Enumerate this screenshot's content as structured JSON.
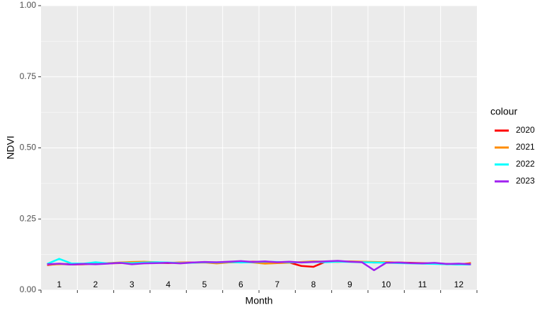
{
  "chart_data": {
    "type": "line",
    "x_label": "Month",
    "y_label": "NDVI",
    "legend_title": "colour",
    "categories": [
      null,
      "1",
      null,
      null,
      "2",
      null,
      null,
      "3",
      null,
      null,
      "4",
      null,
      null,
      "5",
      null,
      null,
      "6",
      null,
      null,
      "7",
      null,
      null,
      "8",
      null,
      null,
      "9",
      null,
      null,
      "10",
      null,
      null,
      "11",
      null,
      null,
      "12",
      null
    ],
    "ylim": [
      0,
      1
    ],
    "yticks": [
      {
        "value": 0,
        "label": "0.00"
      },
      {
        "value": 0.25,
        "label": "0.25"
      },
      {
        "value": 0.5,
        "label": "0.50"
      },
      {
        "value": 0.75,
        "label": "0.75"
      },
      {
        "value": 1,
        "label": "1.00"
      }
    ],
    "grid": true,
    "series": [
      {
        "name": "2020",
        "color": "#ff0000",
        "values": [
          0.088,
          0.092,
          0.09,
          0.091,
          0.093,
          0.094,
          0.095,
          0.097,
          0.098,
          0.096,
          0.095,
          0.097,
          0.097,
          0.098,
          0.096,
          0.098,
          0.099,
          0.1,
          0.099,
          0.098,
          0.097,
          0.085,
          0.082,
          0.1,
          0.101,
          0.1,
          0.099,
          0.097,
          0.098,
          0.097,
          0.096,
          0.095,
          0.094,
          0.092,
          0.09,
          0.095
        ]
      },
      {
        "name": "2021",
        "color": "#ff8c00",
        "values": [
          0.09,
          0.091,
          0.093,
          0.092,
          0.094,
          0.095,
          0.097,
          0.099,
          0.1,
          0.098,
          0.096,
          0.097,
          0.096,
          0.097,
          0.094,
          0.097,
          0.098,
          0.097,
          0.093,
          0.095,
          0.096,
          0.099,
          0.101,
          0.1,
          0.099,
          0.101,
          0.1,
          0.099,
          0.098,
          0.097,
          0.095,
          0.094,
          0.093,
          0.091,
          0.092,
          0.093
        ]
      },
      {
        "name": "2022",
        "color": "#00ffff",
        "values": [
          0.092,
          0.11,
          0.094,
          0.093,
          0.098,
          0.094,
          0.096,
          0.095,
          0.097,
          0.098,
          0.097,
          0.095,
          0.096,
          0.098,
          0.097,
          0.099,
          0.097,
          0.098,
          0.1,
          0.099,
          0.098,
          0.097,
          0.099,
          0.098,
          0.1,
          0.099,
          0.098,
          0.097,
          0.096,
          0.095,
          0.094,
          0.093,
          0.092,
          0.091,
          0.09,
          0.09
        ]
      },
      {
        "name": "2023",
        "color": "#a020f0",
        "values": [
          0.091,
          0.093,
          0.09,
          0.092,
          0.091,
          0.093,
          0.096,
          0.091,
          0.094,
          0.095,
          0.096,
          0.094,
          0.097,
          0.099,
          0.098,
          0.1,
          0.102,
          0.099,
          0.101,
          0.098,
          0.1,
          0.097,
          0.099,
          0.101,
          0.103,
          0.1,
          0.098,
          0.07,
          0.096,
          0.097,
          0.095,
          0.094,
          0.096,
          0.092,
          0.093,
          0.091
        ]
      }
    ]
  }
}
